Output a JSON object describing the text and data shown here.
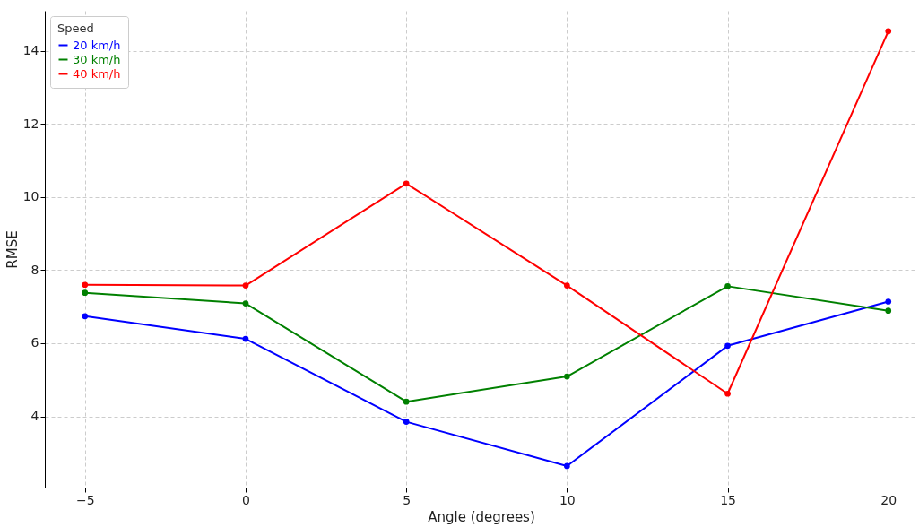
{
  "chart_data": {
    "type": "line",
    "xlabel": "Angle (degrees)",
    "ylabel": "RMSE",
    "legend_title": "Speed",
    "x": [
      -5,
      0,
      5,
      10,
      15,
      20
    ],
    "series": [
      {
        "name": "20 km/h",
        "color": "#0000ff",
        "values": [
          6.74,
          6.12,
          3.85,
          2.64,
          5.93,
          7.14
        ]
      },
      {
        "name": "30 km/h",
        "color": "#008000",
        "values": [
          7.38,
          7.09,
          4.4,
          5.09,
          7.56,
          6.89
        ]
      },
      {
        "name": "40 km/h",
        "color": "#ff0000",
        "values": [
          7.6,
          7.58,
          10.37,
          7.58,
          4.62,
          14.54
        ]
      }
    ],
    "xlim": [
      -6.25,
      20.9
    ],
    "ylim": [
      2.05,
      15.1
    ],
    "xticks": [
      -5,
      0,
      5,
      10,
      15,
      20
    ],
    "yticks": [
      4,
      6,
      8,
      10,
      12,
      14
    ],
    "grid": true,
    "legend": "top left",
    "marker": "circle",
    "line_style": "solid"
  }
}
